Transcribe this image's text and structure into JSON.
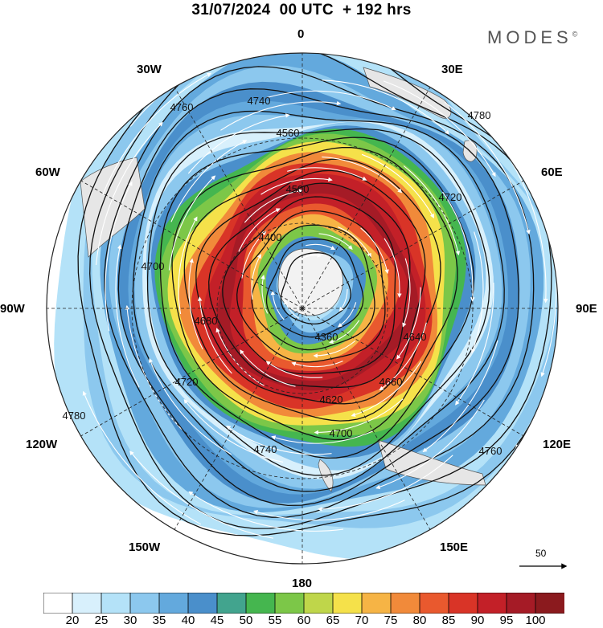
{
  "title": "31/07/2024  00 UTC  + 192 hrs",
  "brand": {
    "text": "MODES",
    "mark": "©"
  },
  "longitude_labels": {
    "n": "0",
    "n30e": "30E",
    "n60e": "60E",
    "e": "90E",
    "s120e": "120E",
    "s150e": "150E",
    "s": "180",
    "s150w": "150W",
    "s120w": "120W",
    "w": "90W",
    "n60w": "60W",
    "n30w": "30W"
  },
  "contour_labels": [
    "4360",
    "4400",
    "4500",
    "4560",
    "4620",
    "4640",
    "4660",
    "4680",
    "4700",
    "4720",
    "4740",
    "4760",
    "4780"
  ],
  "wind_scale_label": "50",
  "colorbar": {
    "ticks": [
      "20",
      "25",
      "30",
      "35",
      "40",
      "45",
      "50",
      "55",
      "60",
      "65",
      "70",
      "75",
      "80",
      "85",
      "90",
      "95",
      "100"
    ],
    "colors": [
      "#ffffff",
      "#d8f0fc",
      "#b4e2f8",
      "#8cc8ee",
      "#63a9dd",
      "#4a8fcb",
      "#42a48e",
      "#45b64f",
      "#7cc748",
      "#bfd64a",
      "#f5e14a",
      "#f6b445",
      "#f18a3a",
      "#e9592e",
      "#d93427",
      "#c32028",
      "#a51b26",
      "#8b1a1e"
    ]
  }
}
